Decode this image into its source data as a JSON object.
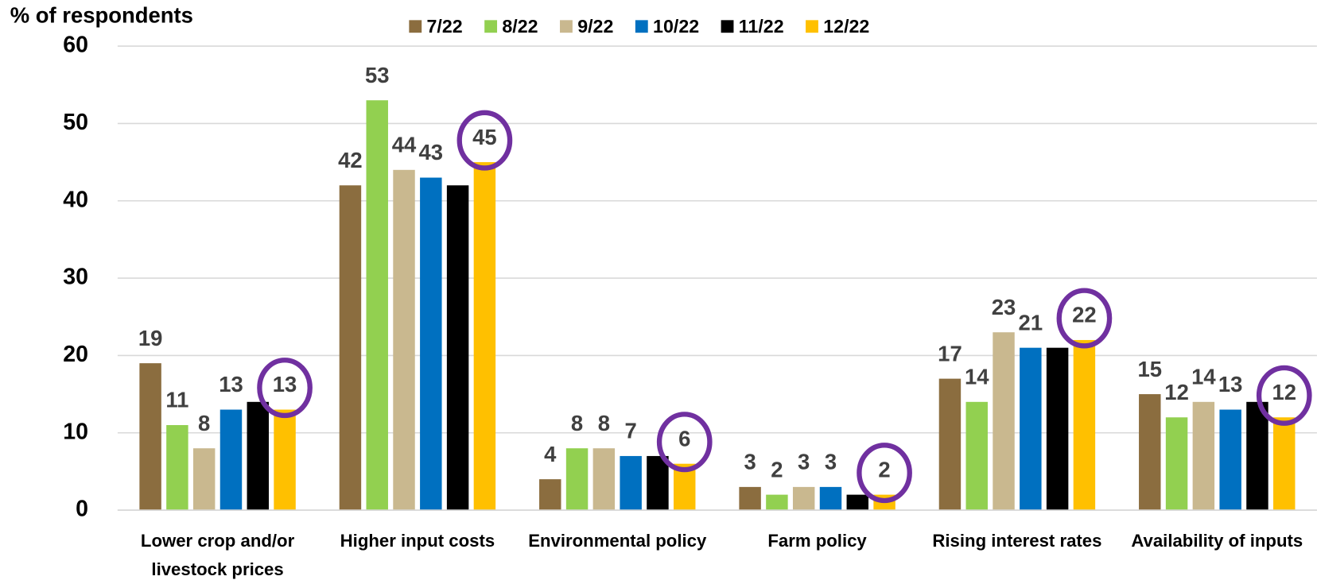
{
  "chart_data": {
    "type": "bar",
    "y_axis_label": "% of respondents",
    "categories": [
      "Lower crop and/or livestock prices",
      "Higher input costs",
      "Environmental policy",
      "Farm policy",
      "Rising interest rates",
      "Availability of inputs"
    ],
    "series": [
      {
        "name": "7/22",
        "color": "#8b6d3f",
        "values": [
          19,
          42,
          4,
          3,
          17,
          15
        ],
        "value_labels": [
          "19",
          "42",
          "4",
          "3",
          "17",
          "15"
        ]
      },
      {
        "name": "8/22",
        "color": "#92d050",
        "values": [
          11,
          53,
          8,
          2,
          14,
          12
        ],
        "value_labels": [
          "11",
          "53",
          "8",
          "2",
          "14",
          "12"
        ]
      },
      {
        "name": "9/22",
        "color": "#c9b88f",
        "values": [
          8,
          44,
          8,
          3,
          23,
          14
        ],
        "value_labels": [
          "8",
          "44",
          "8",
          "3",
          "23",
          "14"
        ]
      },
      {
        "name": "10/22",
        "color": "#0070c0",
        "values": [
          13,
          43,
          7,
          3,
          21,
          13
        ],
        "value_labels": [
          "13",
          "43",
          "7",
          "3",
          "21",
          "13"
        ]
      },
      {
        "name": "11/22",
        "color": "#000000",
        "values": [
          14,
          42,
          7,
          2,
          21,
          14
        ],
        "value_labels": [
          null,
          null,
          null,
          null,
          null,
          null
        ]
      },
      {
        "name": "12/22",
        "color": "#ffc000",
        "values": [
          13,
          45,
          6,
          2,
          22,
          12
        ],
        "value_labels": [
          "13",
          "45",
          "6",
          "2",
          "22",
          "12"
        ]
      }
    ],
    "ylim": [
      0,
      60
    ],
    "yticks": [
      0,
      10,
      20,
      30,
      40,
      50,
      60
    ],
    "grid": true,
    "legend": "top"
  }
}
